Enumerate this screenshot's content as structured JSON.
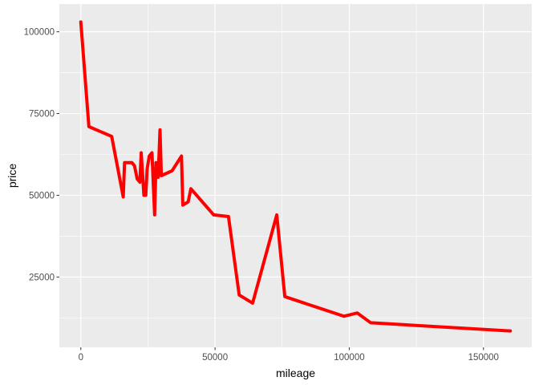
{
  "chart_data": {
    "type": "line",
    "xlabel": "mileage",
    "ylabel": "price",
    "xlim": [
      -8000,
      168000
    ],
    "ylim": [
      3500,
      108500
    ],
    "x_ticks": [
      0,
      50000,
      100000,
      150000
    ],
    "x_tick_labels": [
      "0",
      "50000",
      "100000",
      "150000"
    ],
    "y_ticks": [
      25000,
      50000,
      75000,
      100000
    ],
    "y_tick_labels": [
      "25000",
      "50000",
      "75000",
      "100000"
    ],
    "grid": true,
    "legend": "none",
    "series": [
      {
        "color": "#ff0000",
        "x": [
          0,
          3000,
          11500,
          15800,
          16300,
          19000,
          20000,
          21000,
          22000,
          22500,
          23500,
          24200,
          24700,
          25500,
          26500,
          27500,
          28000,
          28800,
          29500,
          30000,
          34000,
          37500,
          38000,
          40000,
          41000,
          49500,
          55000,
          59000,
          64000,
          73000,
          76000,
          98000,
          103000,
          108000,
          160000
        ],
        "y": [
          103000,
          71000,
          68000,
          49500,
          60000,
          60000,
          59000,
          55000,
          54000,
          63000,
          50000,
          50000,
          58000,
          62000,
          63000,
          44000,
          60000,
          55500,
          70000,
          56000,
          57500,
          62000,
          47000,
          48000,
          52000,
          44000,
          43500,
          19500,
          17000,
          44000,
          19000,
          13000,
          14000,
          11000,
          8500
        ]
      }
    ]
  },
  "colors": {
    "panel_background": "#ebebeb",
    "grid_major": "#ffffff",
    "series_line": "#ff0000",
    "tick_text": "#4d4d4d",
    "tick_mark": "#333333"
  }
}
